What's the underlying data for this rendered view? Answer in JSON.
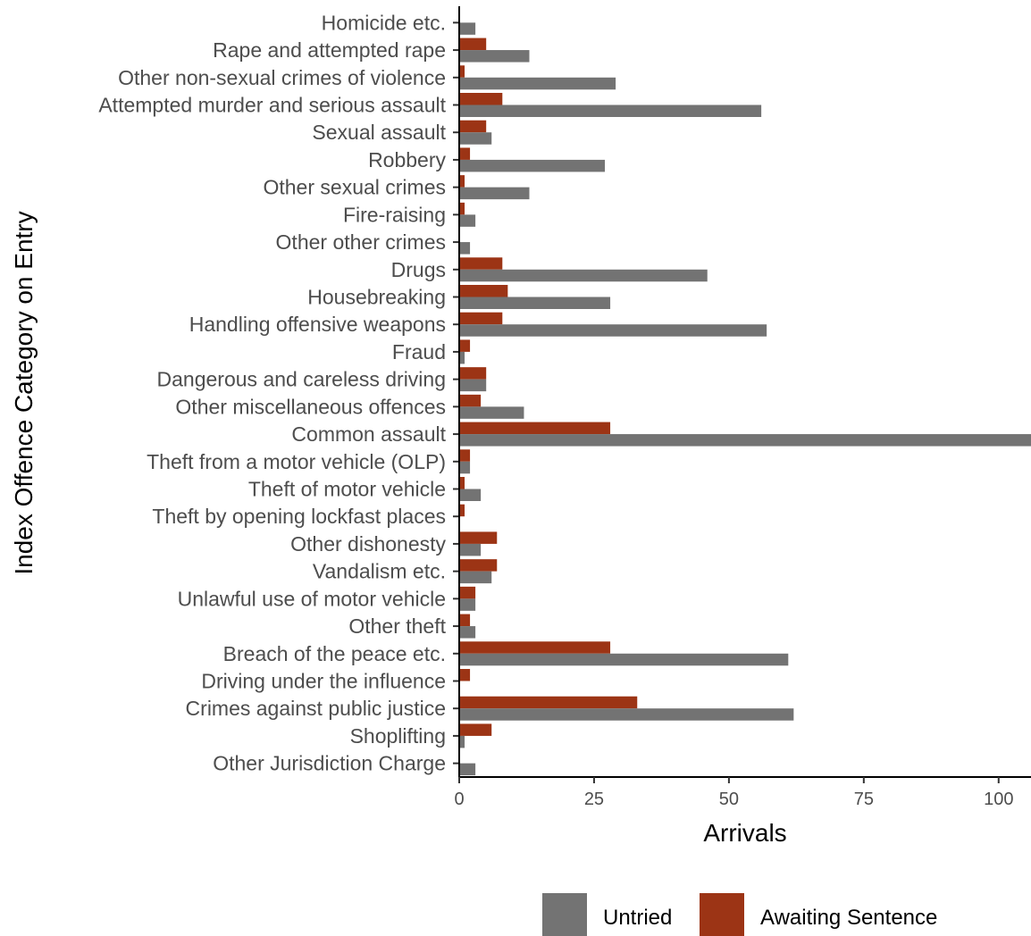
{
  "chart_data": {
    "type": "bar",
    "orientation": "horizontal",
    "xlabel": "Arrivals",
    "ylabel": "Index Offence Category on Entry",
    "xlim": [
      0,
      106
    ],
    "x_ticks": [
      0,
      25,
      50,
      75,
      100
    ],
    "grid": false,
    "legend_position": "bottom",
    "categories": [
      "Homicide etc.",
      "Rape and attempted rape",
      "Other non-sexual crimes of violence",
      "Attempted murder and serious assault",
      "Sexual assault",
      "Robbery",
      "Other sexual crimes",
      "Fire-raising",
      "Other other crimes",
      "Drugs",
      "Housebreaking",
      "Handling offensive weapons",
      "Fraud",
      "Dangerous and careless driving",
      "Other miscellaneous offences",
      "Common assault",
      "Theft from a motor vehicle (OLP)",
      "Theft of motor vehicle",
      "Theft by opening lockfast places",
      "Other dishonesty",
      "Vandalism etc.",
      "Unlawful use of motor vehicle",
      "Other theft",
      "Breach of the peace etc.",
      "Driving under the influence",
      "Crimes against public justice",
      "Shoplifting",
      "Other Jurisdiction Charge"
    ],
    "series": [
      {
        "name": "Untried",
        "color": "#737373",
        "values": [
          3,
          13,
          29,
          56,
          6,
          27,
          13,
          3,
          2,
          46,
          28,
          57,
          1,
          5,
          12,
          106,
          2,
          4,
          0,
          4,
          6,
          3,
          3,
          61,
          0,
          62,
          1,
          3
        ]
      },
      {
        "name": "Awaiting Sentence",
        "color": "#9c3415",
        "values": [
          0,
          5,
          1,
          8,
          5,
          2,
          1,
          1,
          0,
          8,
          9,
          8,
          2,
          5,
          4,
          28,
          2,
          1,
          1,
          7,
          7,
          3,
          2,
          28,
          2,
          33,
          6,
          0
        ]
      }
    ]
  }
}
